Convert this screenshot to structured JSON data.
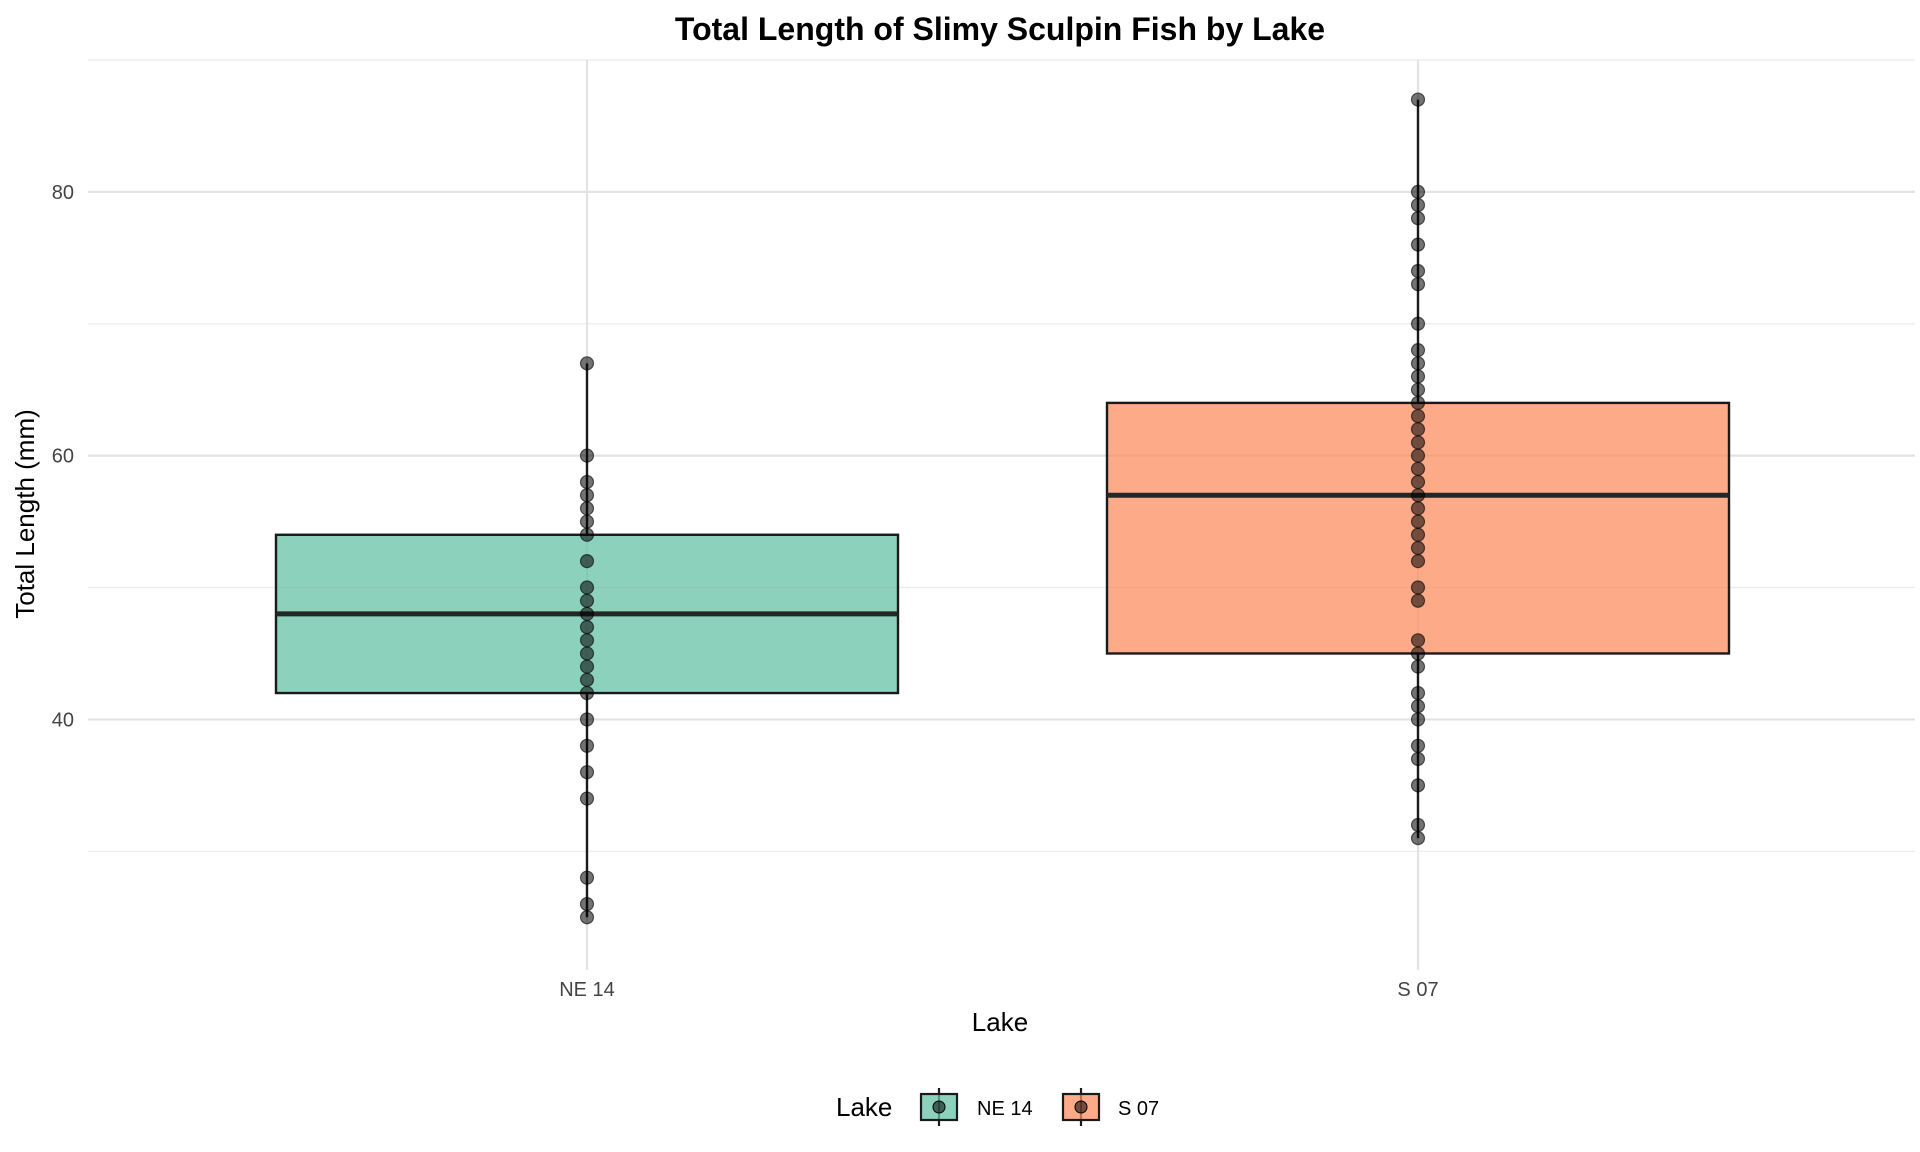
{
  "chart_data": {
    "type": "box",
    "title": "Total Length of Slimy Sculpin Fish by Lake",
    "xlabel": "Lake",
    "ylabel": "Total Length (mm)",
    "ylim": [
      21,
      90
    ],
    "y_ticks": [
      40,
      60,
      80
    ],
    "grid": true,
    "legend": {
      "title": "Lake",
      "position": "bottom",
      "entries": [
        "NE 14",
        "S 07"
      ]
    },
    "categories": [
      "NE 14",
      "S 07"
    ],
    "boxes": [
      {
        "name": "NE 14",
        "color": "#66c2a5",
        "whisker_low": 25,
        "q1": 42,
        "median": 48,
        "q3": 54,
        "whisker_high": 67,
        "points": [
          25,
          26,
          28,
          34,
          36,
          38,
          40,
          42,
          43,
          44,
          45,
          46,
          47,
          48,
          49,
          50,
          52,
          54,
          55,
          56,
          57,
          58,
          60,
          67
        ]
      },
      {
        "name": "S 07",
        "color": "#fc8d62",
        "whisker_low": 31,
        "q1": 45,
        "median": 57,
        "q3": 64,
        "whisker_high": 87,
        "points": [
          31,
          32,
          35,
          37,
          38,
          40,
          41,
          42,
          44,
          45,
          46,
          49,
          50,
          52,
          53,
          54,
          55,
          56,
          57,
          58,
          59,
          60,
          61,
          62,
          63,
          64,
          65,
          66,
          67,
          68,
          70,
          73,
          74,
          76,
          78,
          79,
          80,
          87
        ]
      }
    ]
  }
}
